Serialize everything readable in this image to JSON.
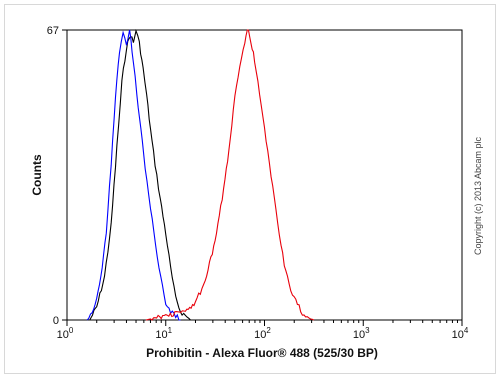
{
  "chart_data": {
    "type": "line",
    "xlabel": "Prohibitin - Alexa Fluor® 488 (525/30 BP)",
    "ylabel": "Counts",
    "x_scale": "log",
    "xlim": [
      1,
      10000
    ],
    "ylim": [
      0,
      67
    ],
    "x_ticks": [
      {
        "value": 1,
        "base": "10",
        "exp": "0"
      },
      {
        "value": 10,
        "base": "10",
        "exp": "1"
      },
      {
        "value": 100,
        "base": "10",
        "exp": "2"
      },
      {
        "value": 1000,
        "base": "10",
        "exp": "3"
      },
      {
        "value": 10000,
        "base": "10",
        "exp": "4"
      }
    ],
    "y_ticks": [
      {
        "value": 0,
        "label": "0"
      },
      {
        "value": 67,
        "label": "67"
      }
    ],
    "legend": "none",
    "grid": false,
    "series": [
      {
        "color": "#000000",
        "x": [
          1.7,
          2.0,
          2.4,
          2.8,
          3.2,
          3.6,
          4.0,
          4.4,
          4.7,
          5.0,
          5.4,
          5.9,
          6.4,
          7.0,
          7.8,
          8.8,
          10.0,
          11.2,
          12.6,
          14.1,
          15.8,
          17.8
        ],
        "y": [
          0,
          3,
          10,
          22,
          40,
          55,
          63,
          66,
          64,
          67,
          64,
          58,
          52,
          44,
          36,
          28,
          20,
          12,
          5,
          2,
          1,
          0
        ]
      },
      {
        "color": "#0000ff",
        "x": [
          1.6,
          1.8,
          2.0,
          2.2,
          2.5,
          2.8,
          3.1,
          3.4,
          3.7,
          4.0,
          4.3,
          4.7,
          5.1,
          5.6,
          6.2,
          7.0,
          7.9,
          8.9,
          10.0,
          11.2,
          12.6,
          14.1
        ],
        "y": [
          0,
          2,
          5,
          10,
          20,
          36,
          52,
          62,
          66,
          64,
          67,
          60,
          52,
          44,
          35,
          26,
          17,
          10,
          4,
          2,
          1,
          0
        ]
      },
      {
        "color": "#e8000b",
        "x": [
          6.3,
          10.0,
          15.8,
          20.0,
          25.1,
          31.6,
          39.8,
          45.0,
          50.1,
          56.2,
          63.1,
          67.0,
          70.8,
          75.0,
          79.4,
          89.1,
          100.0,
          112.2,
          125.9,
          141.3,
          158.5,
          177.8,
          199.5,
          223.9,
          251.2,
          281.8,
          316.2
        ],
        "y": [
          0,
          1,
          2,
          4,
          9,
          18,
          32,
          42,
          52,
          59,
          64,
          67,
          66,
          63,
          60,
          52,
          44,
          36,
          28,
          20,
          13,
          8,
          5,
          3,
          1,
          0.5,
          0
        ]
      }
    ]
  },
  "copyright": "Copyright (c) 2013 Abcam plc"
}
